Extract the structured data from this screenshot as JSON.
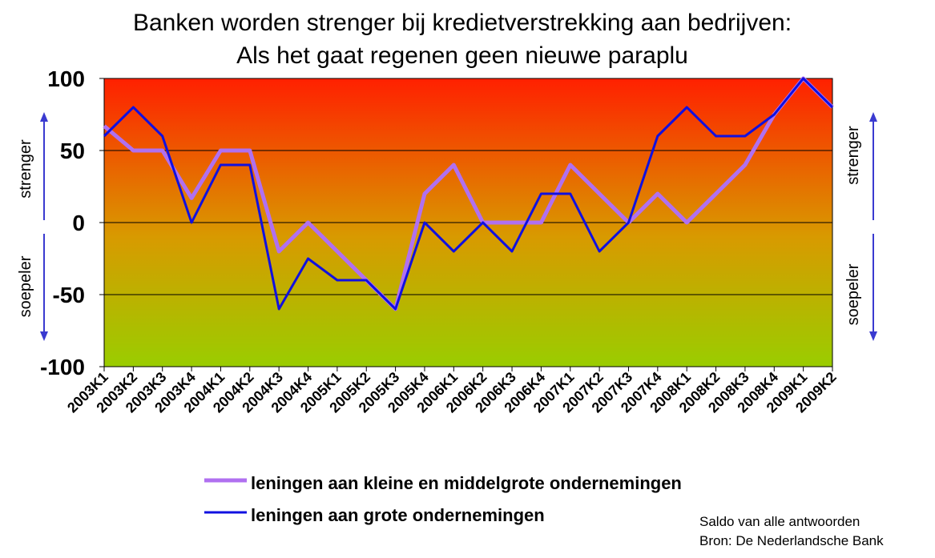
{
  "chart_data": {
    "type": "line",
    "title": "Banken worden strenger bij kredietverstrekking aan bedrijven:",
    "subtitle": "Als het gaat regenen geen nieuwe paraplu",
    "categories": [
      "2003K1",
      "2003K2",
      "2003K3",
      "2003K4",
      "2004K1",
      "2004K2",
      "2004K3",
      "2004K4",
      "2005K1",
      "2005K2",
      "2005K3",
      "2005K4",
      "2006K1",
      "2006K2",
      "2006K3",
      "2006K4",
      "2007K1",
      "2007K2",
      "2007K3",
      "2007K4",
      "2008K1",
      "2008K2",
      "2008K3",
      "2008K4",
      "2009K1",
      "2009K2"
    ],
    "ylim": [
      -100,
      100
    ],
    "yticks": [
      "100",
      "50",
      "0",
      "-50",
      "-100"
    ],
    "grid": true,
    "legend_position": "bottom",
    "series": [
      {
        "name": "leningen aan kleine en middelgrote ondernemingen",
        "color": "#b070f0",
        "values": [
          67,
          50,
          50,
          17,
          50,
          50,
          -20,
          0,
          -20,
          -40,
          -60,
          20,
          40,
          0,
          0,
          0,
          40,
          20,
          0,
          20,
          0,
          20,
          40,
          75,
          100,
          80
        ]
      },
      {
        "name": "leningen aan grote ondernemingen",
        "color": "#1010e0",
        "values": [
          60,
          80,
          60,
          0,
          40,
          40,
          -60,
          -25,
          -40,
          -40,
          -60,
          0,
          -20,
          0,
          -20,
          20,
          20,
          -20,
          0,
          60,
          80,
          60,
          60,
          75,
          100,
          80
        ]
      }
    ],
    "side_labels": {
      "left_top": "strenger",
      "left_bottom": "soepeler",
      "right_top": "strenger",
      "right_bottom": "soepeler"
    },
    "notes": [
      "Saldo van alle antwoorden",
      "Bron: De Nederlandsche Bank"
    ],
    "colors": {
      "gradient_top": "#ff2000",
      "gradient_mid": "#d89a00",
      "gradient_bottom": "#9acd00",
      "arrow": "#3a3ad0"
    }
  }
}
